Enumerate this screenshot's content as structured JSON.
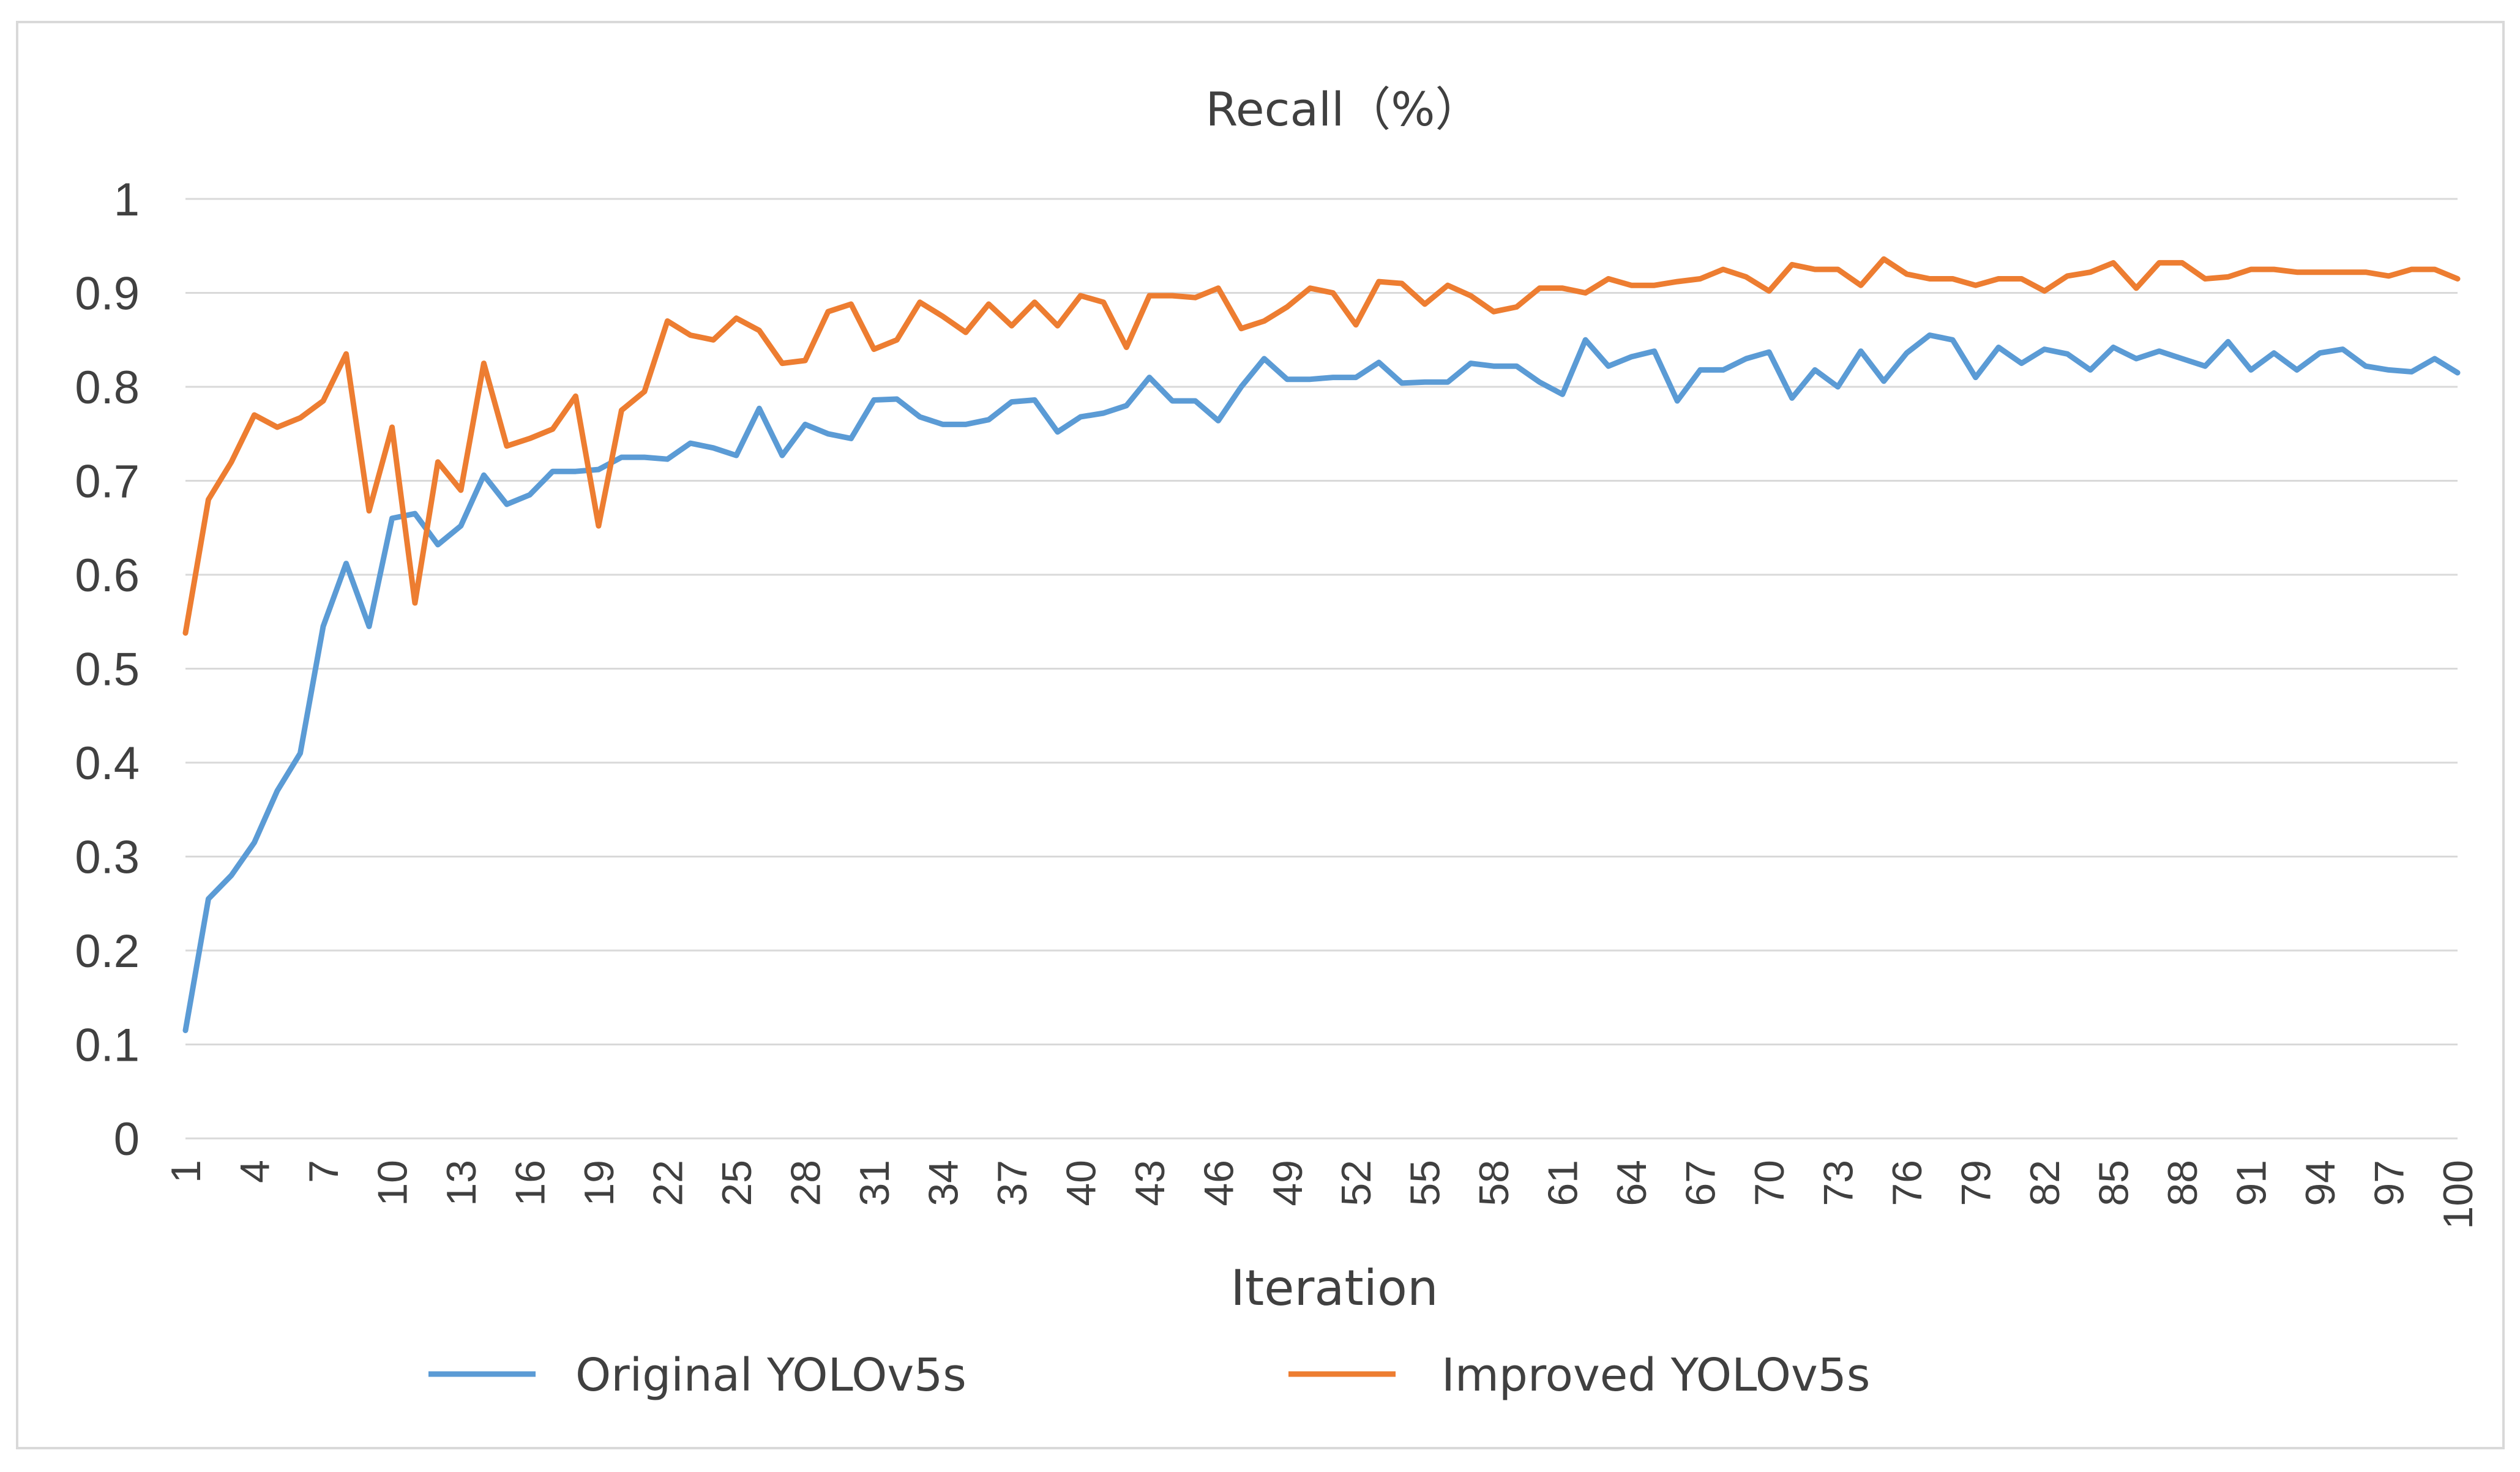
{
  "chart_data": {
    "type": "line",
    "title": "Recall（%）",
    "xlabel": "Iteration",
    "ylabel": "",
    "ylim": [
      0,
      1
    ],
    "yticks": [
      "0",
      "0.1",
      "0.2",
      "0.3",
      "0.4",
      "0.5",
      "0.6",
      "0.7",
      "0.8",
      "0.9",
      "1"
    ],
    "yticks_values": [
      0,
      0.1,
      0.2,
      0.3,
      0.4,
      0.5,
      0.6,
      0.7,
      0.8,
      0.9,
      1
    ],
    "xticks": [
      "1",
      "4",
      "7",
      "10",
      "13",
      "16",
      "19",
      "22",
      "25",
      "28",
      "31",
      "34",
      "37",
      "40",
      "43",
      "46",
      "49",
      "52",
      "55",
      "58",
      "61",
      "64",
      "67",
      "70",
      "73",
      "76",
      "79",
      "82",
      "85",
      "88",
      "91",
      "94",
      "97",
      "100"
    ],
    "grid": true,
    "legend_position": "bottom",
    "series": [
      {
        "name": "Original YOLOv5s",
        "color": "#5B9BD5",
        "values": [
          0.115,
          0.255,
          0.28,
          0.315,
          0.37,
          0.41,
          0.545,
          0.612,
          0.545,
          0.66,
          0.665,
          0.632,
          0.652,
          0.706,
          0.675,
          0.685,
          0.71,
          0.71,
          0.712,
          0.725,
          0.725,
          0.723,
          0.74,
          0.735,
          0.727,
          0.777,
          0.727,
          0.76,
          0.75,
          0.745,
          0.786,
          0.787,
          0.768,
          0.76,
          0.76,
          0.765,
          0.784,
          0.786,
          0.752,
          0.768,
          0.772,
          0.78,
          0.81,
          0.785,
          0.785,
          0.764,
          0.8,
          0.83,
          0.808,
          0.808,
          0.81,
          0.81,
          0.826,
          0.804,
          0.805,
          0.805,
          0.825,
          0.822,
          0.822,
          0.805,
          0.792,
          0.85,
          0.822,
          0.832,
          0.838,
          0.785,
          0.818,
          0.818,
          0.83,
          0.837,
          0.788,
          0.818,
          0.8,
          0.838,
          0.806,
          0.836,
          0.855,
          0.85,
          0.81,
          0.842,
          0.825,
          0.84,
          0.835,
          0.818,
          0.842,
          0.83,
          0.838,
          0.83,
          0.822,
          0.848,
          0.818,
          0.836,
          0.818,
          0.836,
          0.84,
          0.822,
          0.818,
          0.816,
          0.83,
          0.815
        ]
      },
      {
        "name": "Improved YOLOv5s",
        "color": "#ED7D31",
        "values": [
          0.538,
          0.68,
          0.72,
          0.77,
          0.757,
          0.767,
          0.785,
          0.835,
          0.668,
          0.757,
          0.57,
          0.72,
          0.69,
          0.825,
          0.737,
          0.745,
          0.755,
          0.79,
          0.652,
          0.775,
          0.795,
          0.87,
          0.855,
          0.85,
          0.873,
          0.86,
          0.825,
          0.828,
          0.88,
          0.888,
          0.84,
          0.85,
          0.89,
          0.875,
          0.858,
          0.888,
          0.865,
          0.89,
          0.865,
          0.897,
          0.89,
          0.842,
          0.897,
          0.897,
          0.895,
          0.905,
          0.862,
          0.87,
          0.885,
          0.905,
          0.9,
          0.866,
          0.912,
          0.91,
          0.888,
          0.908,
          0.897,
          0.88,
          0.885,
          0.905,
          0.905,
          0.9,
          0.915,
          0.908,
          0.908,
          0.912,
          0.915,
          0.925,
          0.917,
          0.902,
          0.93,
          0.925,
          0.925,
          0.908,
          0.936,
          0.92,
          0.915,
          0.915,
          0.908,
          0.915,
          0.915,
          0.902,
          0.918,
          0.922,
          0.932,
          0.905,
          0.932,
          0.932,
          0.915,
          0.917,
          0.925,
          0.925,
          0.922,
          0.922,
          0.922,
          0.922,
          0.918,
          0.925,
          0.925,
          0.915
        ]
      }
    ]
  }
}
